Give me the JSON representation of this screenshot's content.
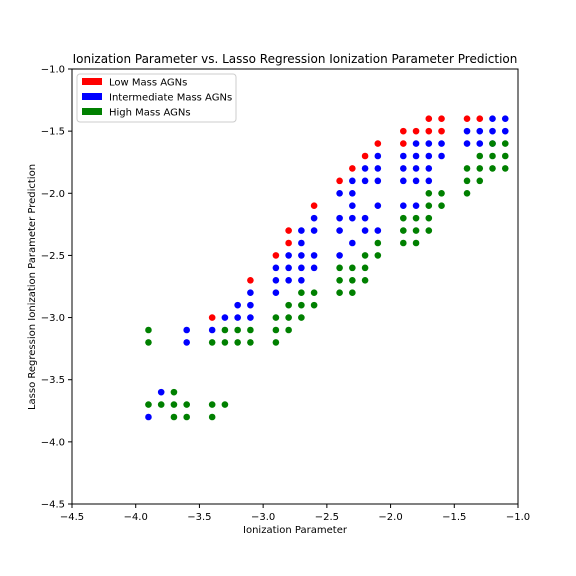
{
  "chart_data": {
    "type": "scatter",
    "title": "Ionization Parameter vs. Lasso Regression Ionization Parameter Prediction",
    "xlabel": "Ionization Parameter",
    "ylabel": "Lasso Regression Ionization Parameter Prediction",
    "xlim": [
      -4.5,
      -1.0
    ],
    "ylim": [
      -4.5,
      -1.0
    ],
    "xticks": [
      -4.5,
      -4.0,
      -3.5,
      -3.0,
      -2.5,
      -2.0,
      -1.5,
      -1.0
    ],
    "yticks": [
      -4.5,
      -4.0,
      -3.5,
      -3.0,
      -2.5,
      -2.0,
      -1.5,
      -1.0
    ],
    "xtick_labels": [
      "−4.5",
      "−4.0",
      "−3.5",
      "−3.0",
      "−2.5",
      "−2.0",
      "−1.5",
      "−1.0"
    ],
    "ytick_labels": [
      "−4.5",
      "−4.0",
      "−3.5",
      "−3.0",
      "−2.5",
      "−2.0",
      "−1.5",
      "−1.0"
    ],
    "grid": false,
    "legend_position": "top-left",
    "series": [
      {
        "name": "Low Mass AGNs",
        "color": "#ff0000",
        "points": [
          [
            -3.4,
            -3.0
          ],
          [
            -3.1,
            -2.7
          ],
          [
            -2.9,
            -2.5
          ],
          [
            -2.8,
            -2.3
          ],
          [
            -2.8,
            -2.4
          ],
          [
            -2.6,
            -2.1
          ],
          [
            -2.4,
            -1.9
          ],
          [
            -2.3,
            -1.8
          ],
          [
            -2.2,
            -1.7
          ],
          [
            -2.1,
            -1.6
          ],
          [
            -1.9,
            -1.5
          ],
          [
            -1.9,
            -1.6
          ],
          [
            -1.8,
            -1.5
          ],
          [
            -1.7,
            -1.4
          ],
          [
            -1.7,
            -1.5
          ],
          [
            -1.6,
            -1.4
          ],
          [
            -1.6,
            -1.5
          ],
          [
            -1.4,
            -1.4
          ],
          [
            -1.3,
            -1.4
          ]
        ]
      },
      {
        "name": "Intermediate Mass AGNs",
        "color": "#0000ff",
        "points": [
          [
            -3.9,
            -3.8
          ],
          [
            -3.8,
            -3.6
          ],
          [
            -3.6,
            -3.1
          ],
          [
            -3.6,
            -3.2
          ],
          [
            -3.4,
            -3.1
          ],
          [
            -3.3,
            -3.0
          ],
          [
            -3.2,
            -2.9
          ],
          [
            -3.2,
            -3.0
          ],
          [
            -3.1,
            -2.8
          ],
          [
            -3.1,
            -2.9
          ],
          [
            -3.1,
            -3.0
          ],
          [
            -2.9,
            -2.6
          ],
          [
            -2.9,
            -2.7
          ],
          [
            -2.9,
            -2.8
          ],
          [
            -2.8,
            -2.5
          ],
          [
            -2.8,
            -2.6
          ],
          [
            -2.8,
            -2.7
          ],
          [
            -2.7,
            -2.3
          ],
          [
            -2.7,
            -2.4
          ],
          [
            -2.7,
            -2.5
          ],
          [
            -2.7,
            -2.6
          ],
          [
            -2.7,
            -2.7
          ],
          [
            -2.6,
            -2.2
          ],
          [
            -2.6,
            -2.3
          ],
          [
            -2.6,
            -2.5
          ],
          [
            -2.6,
            -2.6
          ],
          [
            -2.4,
            -2.0
          ],
          [
            -2.4,
            -2.2
          ],
          [
            -2.4,
            -2.3
          ],
          [
            -2.4,
            -2.5
          ],
          [
            -2.3,
            -1.9
          ],
          [
            -2.3,
            -2.0
          ],
          [
            -2.3,
            -2.1
          ],
          [
            -2.3,
            -2.2
          ],
          [
            -2.3,
            -2.4
          ],
          [
            -2.2,
            -1.8
          ],
          [
            -2.2,
            -1.9
          ],
          [
            -2.2,
            -2.2
          ],
          [
            -2.2,
            -2.3
          ],
          [
            -2.1,
            -1.7
          ],
          [
            -2.1,
            -1.8
          ],
          [
            -2.1,
            -1.9
          ],
          [
            -2.1,
            -2.1
          ],
          [
            -2.1,
            -2.3
          ],
          [
            -1.9,
            -1.7
          ],
          [
            -1.9,
            -1.8
          ],
          [
            -1.9,
            -1.9
          ],
          [
            -1.9,
            -2.1
          ],
          [
            -1.8,
            -1.6
          ],
          [
            -1.8,
            -1.7
          ],
          [
            -1.8,
            -1.8
          ],
          [
            -1.8,
            -1.9
          ],
          [
            -1.8,
            -2.1
          ],
          [
            -1.7,
            -1.6
          ],
          [
            -1.7,
            -1.7
          ],
          [
            -1.7,
            -1.8
          ],
          [
            -1.7,
            -1.9
          ],
          [
            -1.6,
            -1.6
          ],
          [
            -1.6,
            -1.7
          ],
          [
            -1.4,
            -1.5
          ],
          [
            -1.4,
            -1.6
          ],
          [
            -1.3,
            -1.5
          ],
          [
            -1.3,
            -1.6
          ],
          [
            -1.2,
            -1.4
          ],
          [
            -1.2,
            -1.5
          ],
          [
            -1.2,
            -1.6
          ],
          [
            -1.1,
            -1.4
          ],
          [
            -1.1,
            -1.5
          ]
        ]
      },
      {
        "name": "High Mass AGNs",
        "color": "#008000",
        "points": [
          [
            -3.9,
            -3.1
          ],
          [
            -3.9,
            -3.2
          ],
          [
            -3.9,
            -3.7
          ],
          [
            -3.8,
            -3.7
          ],
          [
            -3.7,
            -3.6
          ],
          [
            -3.7,
            -3.7
          ],
          [
            -3.7,
            -3.8
          ],
          [
            -3.6,
            -3.7
          ],
          [
            -3.6,
            -3.8
          ],
          [
            -3.4,
            -3.2
          ],
          [
            -3.4,
            -3.7
          ],
          [
            -3.4,
            -3.8
          ],
          [
            -3.3,
            -3.7
          ],
          [
            -3.3,
            -3.1
          ],
          [
            -3.3,
            -3.2
          ],
          [
            -3.2,
            -3.1
          ],
          [
            -3.2,
            -3.2
          ],
          [
            -3.1,
            -3.1
          ],
          [
            -3.1,
            -3.2
          ],
          [
            -2.9,
            -3.0
          ],
          [
            -2.9,
            -3.1
          ],
          [
            -2.9,
            -3.2
          ],
          [
            -2.8,
            -2.9
          ],
          [
            -2.8,
            -3.0
          ],
          [
            -2.8,
            -3.1
          ],
          [
            -2.7,
            -2.8
          ],
          [
            -2.7,
            -2.9
          ],
          [
            -2.7,
            -3.0
          ],
          [
            -2.6,
            -2.8
          ],
          [
            -2.6,
            -2.9
          ],
          [
            -2.4,
            -2.6
          ],
          [
            -2.4,
            -2.7
          ],
          [
            -2.4,
            -2.8
          ],
          [
            -2.3,
            -2.6
          ],
          [
            -2.3,
            -2.7
          ],
          [
            -2.3,
            -2.8
          ],
          [
            -2.2,
            -2.5
          ],
          [
            -2.2,
            -2.6
          ],
          [
            -2.2,
            -2.7
          ],
          [
            -2.1,
            -2.4
          ],
          [
            -2.1,
            -2.5
          ],
          [
            -1.9,
            -2.2
          ],
          [
            -1.9,
            -2.3
          ],
          [
            -1.9,
            -2.4
          ],
          [
            -1.8,
            -2.2
          ],
          [
            -1.8,
            -2.3
          ],
          [
            -1.8,
            -2.4
          ],
          [
            -1.7,
            -2.0
          ],
          [
            -1.7,
            -2.1
          ],
          [
            -1.7,
            -2.2
          ],
          [
            -1.7,
            -2.3
          ],
          [
            -1.6,
            -2.0
          ],
          [
            -1.6,
            -2.1
          ],
          [
            -1.4,
            -1.8
          ],
          [
            -1.4,
            -1.9
          ],
          [
            -1.4,
            -2.0
          ],
          [
            -1.3,
            -1.7
          ],
          [
            -1.3,
            -1.8
          ],
          [
            -1.3,
            -1.9
          ],
          [
            -1.2,
            -1.6
          ],
          [
            -1.2,
            -1.7
          ],
          [
            -1.2,
            -1.8
          ],
          [
            -1.1,
            -1.6
          ],
          [
            -1.1,
            -1.7
          ],
          [
            -1.1,
            -1.8
          ]
        ]
      }
    ]
  }
}
